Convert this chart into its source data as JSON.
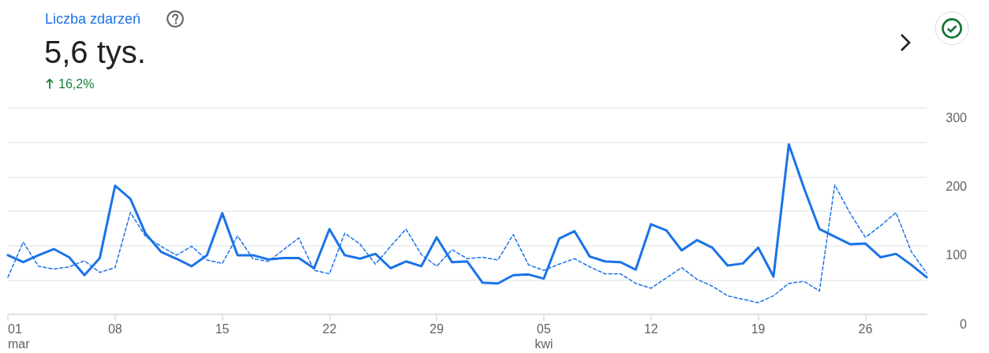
{
  "chart_data": {
    "type": "line",
    "title": "Liczba zdarzeń",
    "subtitle": "5,6 tys.",
    "annotations": [
      "16,2%"
    ],
    "x": [
      "--03-01",
      "--03-02",
      "--03-03",
      "--03-04",
      "--03-05",
      "--03-06",
      "--03-07",
      "--03-08",
      "--03-09",
      "--03-10",
      "--03-11",
      "--03-12",
      "--03-13",
      "--03-14",
      "--03-15",
      "--03-16",
      "--03-17",
      "--03-18",
      "--03-19",
      "--03-20",
      "--03-21",
      "--03-22",
      "--03-23",
      "--03-24",
      "--03-25",
      "--03-26",
      "--03-27",
      "--03-28",
      "--03-29",
      "--03-30",
      "--03-31",
      "--04-01",
      "--04-02",
      "--04-03",
      "--04-04",
      "--04-05",
      "--04-06",
      "--04-07",
      "--04-08",
      "--04-09",
      "--04-10",
      "--04-11",
      "--04-12",
      "--04-13",
      "--04-14",
      "--04-15",
      "--04-16",
      "--04-17",
      "--04-18",
      "--04-19",
      "--04-20",
      "--04-21",
      "--04-22",
      "--04-23",
      "--04-24",
      "--04-25",
      "--04-26",
      "--04-27",
      "--04-28",
      "--04-29",
      "--04-30"
    ],
    "xlim": [
      "--03-01",
      "--04-30"
    ],
    "xticks": [
      {
        "value": "--03-01",
        "label": "01\nmar"
      },
      {
        "value": "--03-08",
        "label": "08"
      },
      {
        "value": "--03-15",
        "label": "15"
      },
      {
        "value": "--03-22",
        "label": "22"
      },
      {
        "value": "--03-29",
        "label": "29"
      },
      {
        "value": "--04-05",
        "label": "05\nkwi"
      },
      {
        "value": "--04-12",
        "label": "12"
      },
      {
        "value": "--04-19",
        "label": "19"
      },
      {
        "value": "--04-26",
        "label": "26"
      }
    ],
    "ylim": [
      0,
      300
    ],
    "yticks": [
      0,
      100,
      200,
      300
    ],
    "grid": "y",
    "marker": "none",
    "series": [
      {
        "color": "#1a73e8",
        "line_style": "solid",
        "values": [
          86,
          76,
          86,
          95,
          83,
          57,
          82,
          187,
          168,
          117,
          91,
          81,
          70,
          86,
          147,
          86,
          86,
          80,
          82,
          82,
          67,
          124,
          86,
          81,
          88,
          67,
          77,
          70,
          112,
          76,
          77,
          46,
          45,
          57,
          58,
          52,
          110,
          121,
          84,
          77,
          76,
          65,
          131,
          122,
          93,
          108,
          97,
          71,
          74,
          97,
          55,
          247,
          183,
          124,
          113,
          102,
          103,
          83,
          88,
          72,
          54
        ]
      },
      {
        "color": "#1a73e8",
        "line_style": "dashed",
        "values": [
          54,
          105,
          70,
          66,
          69,
          78,
          61,
          68,
          148,
          113,
          99,
          86,
          99,
          79,
          74,
          114,
          81,
          77,
          94,
          111,
          64,
          59,
          118,
          102,
          73,
          99,
          124,
          87,
          70,
          94,
          81,
          83,
          79,
          116,
          72,
          64,
          73,
          81,
          69,
          59,
          59,
          45,
          38,
          53,
          68,
          51,
          41,
          27,
          22,
          17,
          27,
          45,
          48,
          34,
          188,
          147,
          112,
          129,
          148,
          91,
          60
        ]
      }
    ]
  }
}
